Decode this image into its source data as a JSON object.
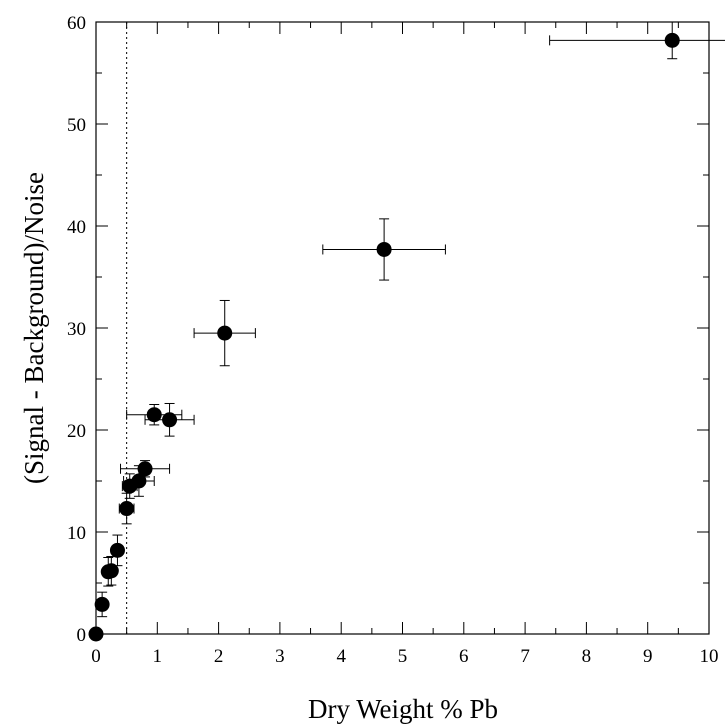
{
  "chart_data": {
    "type": "scatter",
    "xlabel": "Dry Weight % Pb",
    "ylabel": "(Signal - Background)/Noise",
    "xlim": [
      0,
      10
    ],
    "ylim": [
      0,
      60
    ],
    "x_ticks": [
      "0",
      "1",
      "2",
      "3",
      "4",
      "5",
      "6",
      "7",
      "8",
      "9",
      "10"
    ],
    "y_ticks": [
      "0",
      "10",
      "20",
      "30",
      "40",
      "50",
      "60"
    ],
    "grid": false,
    "reference_line": {
      "x": 0.5,
      "style": "dotted"
    },
    "points": [
      {
        "x": 0.0,
        "y": 0.0,
        "xerr": 0.0,
        "yerr": 0.0
      },
      {
        "x": 0.1,
        "y": 2.9,
        "xerr": 0.05,
        "yerr": 1.2
      },
      {
        "x": 0.2,
        "y": 6.1,
        "xerr": 0.06,
        "yerr": 1.4
      },
      {
        "x": 0.25,
        "y": 6.2,
        "xerr": 0.08,
        "yerr": 1.4
      },
      {
        "x": 0.35,
        "y": 8.2,
        "xerr": 0.08,
        "yerr": 1.5
      },
      {
        "x": 0.5,
        "y": 12.3,
        "xerr": 0.12,
        "yerr": 1.5
      },
      {
        "x": 0.55,
        "y": 14.5,
        "xerr": 0.12,
        "yerr": 1.2
      },
      {
        "x": 0.7,
        "y": 15.0,
        "xerr": 0.25,
        "yerr": 1.5
      },
      {
        "x": 0.8,
        "y": 16.2,
        "xerr": 0.4,
        "yerr": 0.8
      },
      {
        "x": 0.95,
        "y": 21.5,
        "xerr": 0.45,
        "yerr": 1.0
      },
      {
        "x": 1.2,
        "y": 21.0,
        "xerr": 0.4,
        "yerr": 1.6
      },
      {
        "x": 2.1,
        "y": 29.5,
        "xerr": 0.5,
        "yerr": 3.2
      },
      {
        "x": 4.7,
        "y": 37.7,
        "xerr": 1.0,
        "yerr": 3.0
      },
      {
        "x": 9.4,
        "y": 58.2,
        "xerr": 2.0,
        "yerr": 1.8
      }
    ]
  }
}
